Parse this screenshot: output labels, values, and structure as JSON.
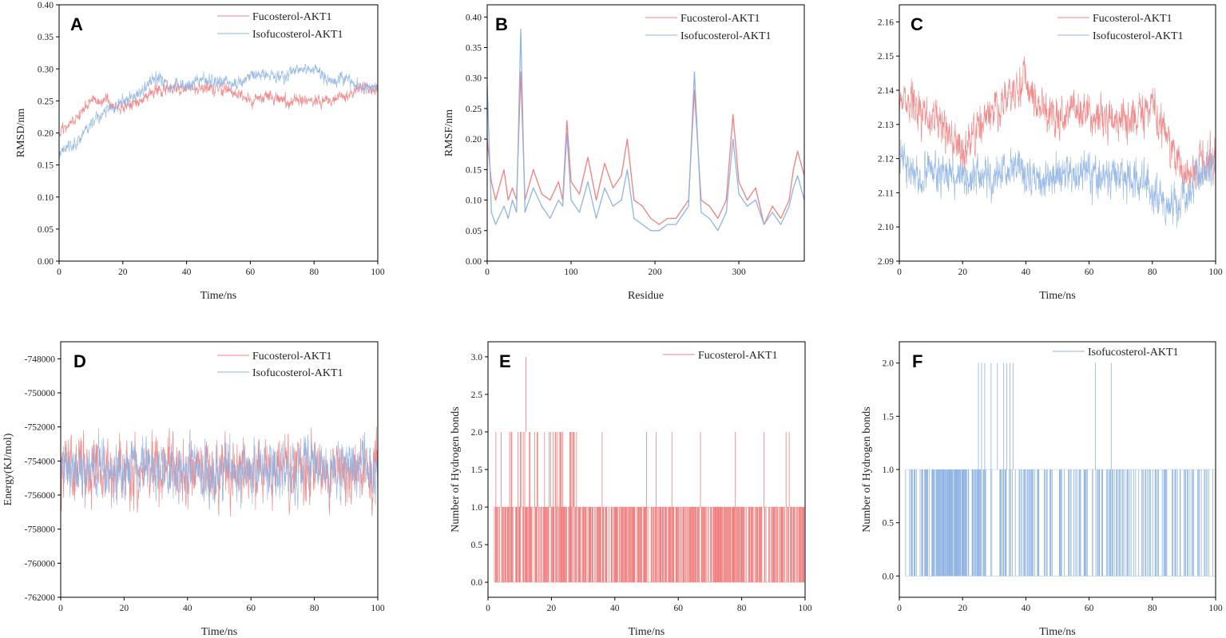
{
  "colors": {
    "fucosterol": "#f08080",
    "isofucosterol": "#8fb4e3",
    "axis": "#000000"
  },
  "chart_data": [
    {
      "panel": "A",
      "type": "line",
      "xlabel": "Time/ns",
      "ylabel": "RMSD/nm",
      "xlim": [
        0,
        100
      ],
      "ylim": [
        0,
        0.4
      ],
      "xticks": [
        0,
        20,
        40,
        60,
        80,
        100
      ],
      "xtick_labels": [
        "0",
        "20",
        "40",
        "60",
        "80",
        "100"
      ],
      "yticks": [
        0,
        0.05,
        0.1,
        0.15,
        0.2,
        0.25,
        0.3,
        0.35,
        0.4
      ],
      "ytick_labels": [
        "0.00",
        "0.05",
        "0.10",
        "0.15",
        "0.20",
        "0.25",
        "0.30",
        "0.35",
        "0.40"
      ],
      "legend_position": "top-right",
      "series": [
        {
          "name": "Fucosterol-AKT1",
          "color_key": "fucosterol",
          "noise": 0.008,
          "seed": 11,
          "x": [
            0,
            5,
            10,
            15,
            20,
            25,
            30,
            35,
            40,
            45,
            50,
            55,
            60,
            65,
            70,
            75,
            80,
            85,
            90,
            95,
            100
          ],
          "values": [
            0.2,
            0.22,
            0.25,
            0.25,
            0.24,
            0.25,
            0.265,
            0.27,
            0.27,
            0.27,
            0.27,
            0.265,
            0.25,
            0.255,
            0.25,
            0.25,
            0.25,
            0.25,
            0.26,
            0.27,
            0.265
          ]
        },
        {
          "name": "Isofucosterol-AKT1",
          "color_key": "isofucosterol",
          "noise": 0.008,
          "seed": 23,
          "x": [
            0,
            5,
            10,
            15,
            20,
            25,
            30,
            35,
            40,
            45,
            50,
            55,
            60,
            65,
            70,
            75,
            80,
            85,
            90,
            95,
            100
          ],
          "values": [
            0.17,
            0.18,
            0.215,
            0.235,
            0.25,
            0.26,
            0.285,
            0.27,
            0.275,
            0.285,
            0.28,
            0.275,
            0.29,
            0.29,
            0.285,
            0.3,
            0.3,
            0.28,
            0.285,
            0.27,
            0.27
          ]
        }
      ]
    },
    {
      "panel": "B",
      "type": "line",
      "xlabel": "Residue",
      "ylabel": "RMSF/nm",
      "xlim": [
        0,
        378
      ],
      "ylim": [
        0,
        0.42
      ],
      "xticks": [
        0,
        100,
        200,
        300
      ],
      "xtick_labels": [
        "0",
        "100",
        "200",
        "300"
      ],
      "yticks": [
        0,
        0.05,
        0.1,
        0.15,
        0.2,
        0.25,
        0.3,
        0.35,
        0.4
      ],
      "ytick_labels": [
        "0.00",
        "0.05",
        "0.10",
        "0.15",
        "0.20",
        "0.25",
        "0.30",
        "0.35",
        "0.40"
      ],
      "legend_position": "top-right",
      "series": [
        {
          "name": "Fucosterol-AKT1",
          "color_key": "fucosterol",
          "noise": 0,
          "seed": 0,
          "x": [
            0,
            5,
            10,
            20,
            25,
            30,
            35,
            40,
            45,
            55,
            65,
            75,
            85,
            90,
            95,
            100,
            110,
            120,
            130,
            140,
            150,
            160,
            167,
            175,
            185,
            195,
            205,
            215,
            225,
            235,
            240,
            247,
            255,
            265,
            275,
            285,
            293,
            300,
            310,
            320,
            330,
            340,
            350,
            360,
            365,
            370,
            378
          ],
          "values": [
            0.2,
            0.13,
            0.1,
            0.15,
            0.1,
            0.12,
            0.1,
            0.31,
            0.1,
            0.15,
            0.11,
            0.1,
            0.13,
            0.1,
            0.23,
            0.13,
            0.11,
            0.17,
            0.1,
            0.16,
            0.12,
            0.14,
            0.2,
            0.1,
            0.09,
            0.07,
            0.06,
            0.07,
            0.07,
            0.09,
            0.1,
            0.28,
            0.1,
            0.09,
            0.07,
            0.1,
            0.24,
            0.13,
            0.1,
            0.12,
            0.06,
            0.09,
            0.07,
            0.1,
            0.15,
            0.18,
            0.14
          ]
        },
        {
          "name": "Isofucosterol-AKT1",
          "color_key": "isofucosterol",
          "noise": 0,
          "seed": 0,
          "x": [
            0,
            5,
            10,
            20,
            25,
            30,
            35,
            40,
            45,
            55,
            65,
            75,
            85,
            90,
            95,
            100,
            110,
            120,
            130,
            140,
            150,
            160,
            167,
            175,
            185,
            195,
            205,
            215,
            225,
            235,
            240,
            247,
            255,
            265,
            275,
            285,
            293,
            300,
            310,
            320,
            330,
            340,
            350,
            360,
            365,
            370,
            378
          ],
          "values": [
            0.29,
            0.08,
            0.06,
            0.09,
            0.07,
            0.1,
            0.08,
            0.38,
            0.08,
            0.12,
            0.09,
            0.07,
            0.1,
            0.09,
            0.21,
            0.1,
            0.08,
            0.13,
            0.07,
            0.12,
            0.09,
            0.1,
            0.15,
            0.07,
            0.06,
            0.05,
            0.05,
            0.06,
            0.06,
            0.08,
            0.09,
            0.31,
            0.08,
            0.07,
            0.05,
            0.08,
            0.2,
            0.11,
            0.09,
            0.1,
            0.06,
            0.08,
            0.06,
            0.09,
            0.12,
            0.14,
            0.1
          ]
        }
      ]
    },
    {
      "panel": "C",
      "type": "line",
      "xlabel": "Time/ns",
      "ylabel": "",
      "xlim": [
        0,
        100
      ],
      "ylim": [
        2.09,
        2.165
      ],
      "xticks": [
        0,
        20,
        40,
        60,
        80,
        100
      ],
      "xtick_labels": [
        "0",
        "20",
        "40",
        "60",
        "80",
        "100"
      ],
      "yticks": [
        2.09,
        2.1,
        2.11,
        2.12,
        2.13,
        2.14,
        2.15,
        2.16
      ],
      "ytick_labels": [
        "2.09",
        "2.10",
        "2.11",
        "2.12",
        "2.13",
        "2.14",
        "2.15",
        "2.16"
      ],
      "legend_position": "top-right",
      "series": [
        {
          "name": "Fucosterol-AKT1",
          "color_key": "fucosterol",
          "noise": 0.005,
          "seed": 31,
          "x": [
            0,
            5,
            10,
            15,
            20,
            25,
            30,
            35,
            40,
            45,
            50,
            55,
            60,
            65,
            70,
            75,
            80,
            85,
            90,
            95,
            100
          ],
          "values": [
            2.138,
            2.135,
            2.132,
            2.128,
            2.12,
            2.13,
            2.135,
            2.138,
            2.14,
            2.135,
            2.132,
            2.135,
            2.134,
            2.13,
            2.13,
            2.132,
            2.135,
            2.125,
            2.115,
            2.118,
            2.12
          ]
        },
        {
          "name": "Isofucosterol-AKT1",
          "color_key": "isofucosterol",
          "noise": 0.005,
          "seed": 47,
          "x": [
            0,
            5,
            10,
            15,
            20,
            25,
            30,
            35,
            40,
            45,
            50,
            55,
            60,
            65,
            70,
            75,
            80,
            85,
            90,
            95,
            100
          ],
          "values": [
            2.12,
            2.115,
            2.115,
            2.116,
            2.115,
            2.114,
            2.115,
            2.117,
            2.116,
            2.115,
            2.116,
            2.115,
            2.116,
            2.115,
            2.116,
            2.114,
            2.11,
            2.105,
            2.108,
            2.115,
            2.118
          ]
        }
      ]
    },
    {
      "panel": "D",
      "type": "line",
      "xlabel": "Time/ns",
      "ylabel": "Energy(KJ/mol)",
      "xlim": [
        0,
        100
      ],
      "ylim": [
        -762000,
        -747000
      ],
      "xticks": [
        0,
        20,
        40,
        60,
        80,
        100
      ],
      "xtick_labels": [
        "0",
        "20",
        "40",
        "60",
        "80",
        "100"
      ],
      "yticks": [
        -762000,
        -760000,
        -758000,
        -756000,
        -754000,
        -752000,
        -750000,
        -748000
      ],
      "ytick_labels": [
        "-762000",
        "-760000",
        "-758000",
        "-756000",
        "-754000",
        "-752000",
        "-750000",
        "-748000"
      ],
      "legend_position": "top-right",
      "series": [
        {
          "name": "Fucosterol-AKT1",
          "color_key": "fucosterol",
          "noise": 1500,
          "seed": 59,
          "x": [
            0,
            100
          ],
          "values": [
            -754500,
            -754500
          ]
        },
        {
          "name": "Isofucosterol-AKT1",
          "color_key": "isofucosterol",
          "noise": 1300,
          "seed": 71,
          "x": [
            0,
            100
          ],
          "values": [
            -754500,
            -754500
          ]
        }
      ]
    },
    {
      "panel": "E",
      "type": "bar",
      "xlabel": "Time/ns",
      "ylabel": "Number of Hydrogen bonds",
      "xlim": [
        0,
        100
      ],
      "ylim": [
        -0.2,
        3.2
      ],
      "xticks": [
        0,
        20,
        40,
        60,
        80,
        100
      ],
      "xtick_labels": [
        "0",
        "20",
        "40",
        "60",
        "80",
        "100"
      ],
      "yticks": [
        0,
        0.5,
        1,
        1.5,
        2,
        2.5,
        3
      ],
      "ytick_labels": [
        "0.0",
        "0.5",
        "1.0",
        "1.5",
        "2.0",
        "2.5",
        "3.0"
      ],
      "legend_position": "top-right",
      "series": [
        {
          "name": "Fucosterol-AKT1",
          "color_key": "fucosterol",
          "base_value": 1,
          "base_range": [
            2,
            100
          ],
          "base_density": 0.55,
          "seed": 83,
          "value2_range": [
            2,
            30
          ],
          "value2_density": 0.35,
          "value2_extra": [
            36,
            50,
            53,
            58,
            67,
            78,
            87,
            94,
            95
          ],
          "value3_at": [
            12
          ]
        }
      ]
    },
    {
      "panel": "F",
      "type": "bar",
      "xlabel": "Time/ns",
      "ylabel": "Number of Hydrogen bonds",
      "xlim": [
        0,
        100
      ],
      "ylim": [
        -0.2,
        2.2
      ],
      "xticks": [
        0,
        20,
        40,
        60,
        80,
        100
      ],
      "xtick_labels": [
        "0",
        "20",
        "40",
        "60",
        "80",
        "100"
      ],
      "yticks": [
        0,
        0.5,
        1,
        1.5,
        2
      ],
      "ytick_labels": [
        "0.0",
        "0.5",
        "1.0",
        "1.5",
        "2.0"
      ],
      "legend_position": "top-right",
      "series": [
        {
          "name": "Isofucosterol-AKT1",
          "color_key": "isofucosterol",
          "base_value": 1,
          "base_range": [
            2,
            100
          ],
          "base_density": 0.22,
          "seed": 97,
          "dense_range": [
            8,
            26
          ],
          "dense_density": 0.7,
          "value2_extra": [
            25,
            26,
            27,
            29,
            31,
            33,
            34,
            35,
            36,
            62,
            67
          ]
        }
      ]
    }
  ]
}
